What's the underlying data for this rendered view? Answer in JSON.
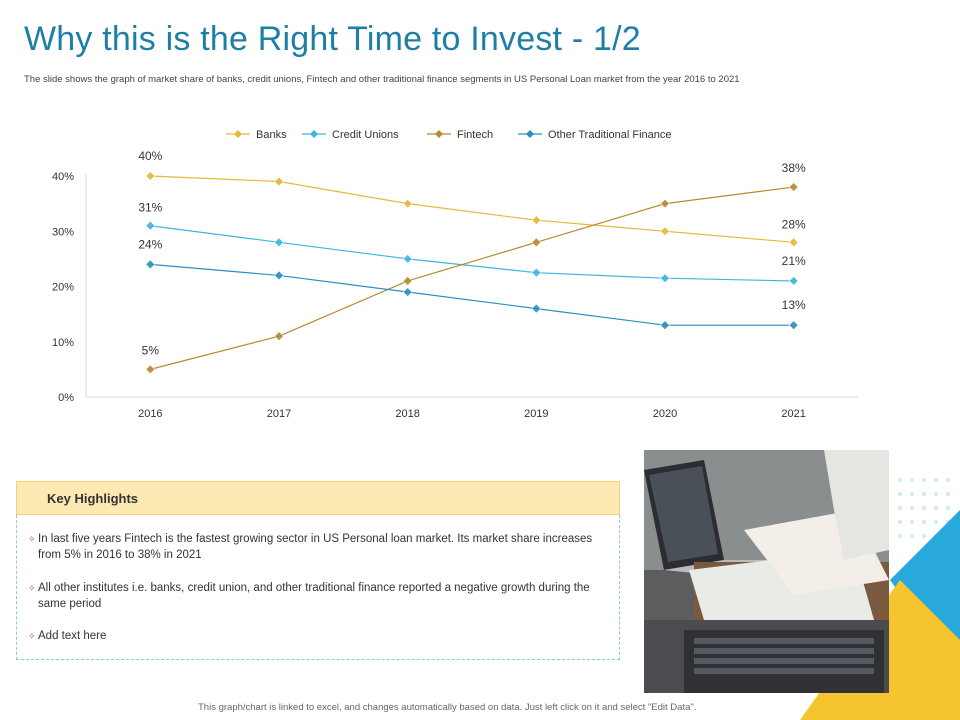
{
  "title": "Why this is the Right Time to Invest - 1/2",
  "subtitle": "The slide shows the graph of market share of banks, credit unions, Fintech and other traditional finance segments in US Personal Loan market from the year 2016 to 2021",
  "chart_data": {
    "type": "line",
    "categories": [
      "2016",
      "2017",
      "2018",
      "2019",
      "2020",
      "2021"
    ],
    "ylim": [
      0,
      40
    ],
    "yticks": [
      "0%",
      "10%",
      "20%",
      "30%",
      "40%"
    ],
    "legend_position": "top",
    "grid": false,
    "series": [
      {
        "name": "Banks",
        "values": [
          40,
          39,
          35,
          32,
          30,
          28
        ],
        "color": "#e6b739",
        "labels": [
          "40%",
          "",
          "",
          "",
          "",
          "28%"
        ]
      },
      {
        "name": "Credit Unions",
        "values": [
          31,
          28,
          25,
          22.5,
          21.5,
          21
        ],
        "color": "#3fb5e0",
        "labels": [
          "31%",
          "",
          "",
          "",
          "",
          "21%"
        ]
      },
      {
        "name": "Fintech",
        "values": [
          5,
          11,
          21,
          28,
          35,
          38
        ],
        "color": "#b88a2e",
        "labels": [
          "5%",
          "",
          "",
          "",
          "",
          "38%"
        ]
      },
      {
        "name": "Other Traditional Finance",
        "values": [
          24,
          22,
          19,
          16,
          13,
          13
        ],
        "color": "#2a8fbf",
        "labels": [
          "24%",
          "",
          "",
          "",
          "",
          "13%"
        ]
      }
    ]
  },
  "highlights": {
    "title": "Key Highlights",
    "items": [
      "In last five years Fintech is the fastest growing sector in US Personal loan market. Its market share increases from 5% in 2016 to 38% in 2021",
      "All other institutes i.e. banks, credit union, and other traditional finance reported a negative growth during the same period",
      "Add text here"
    ]
  },
  "footer": "This graph/chart is linked to excel, and changes automatically based on data. Just left click on it and select \"Edit Data\"."
}
